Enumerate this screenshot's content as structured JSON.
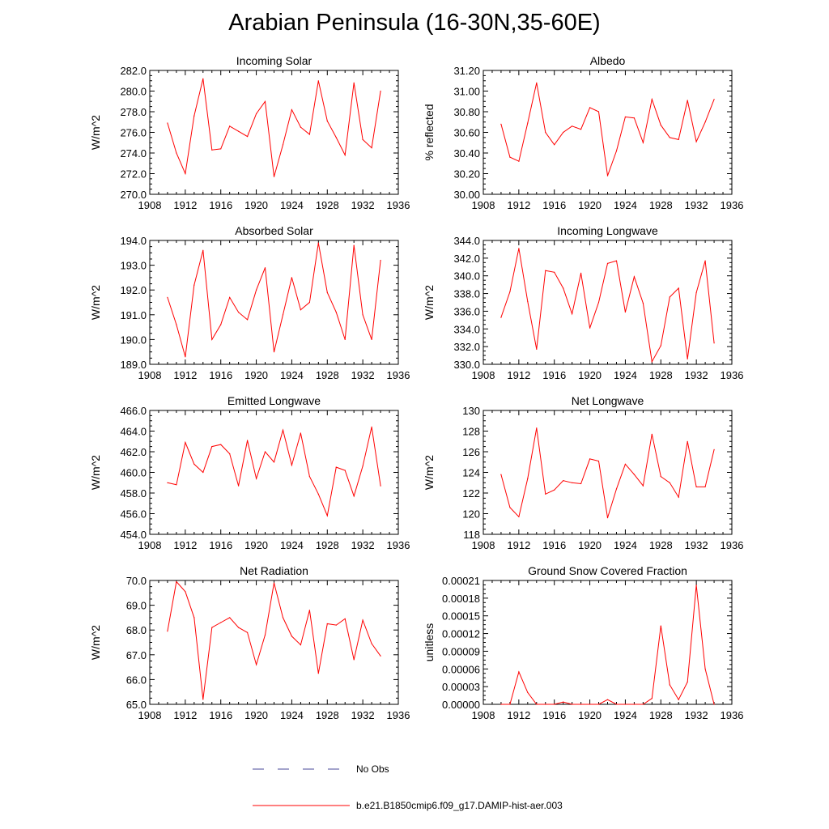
{
  "title": "Arabian Peninsula (16-30N,35-60E)",
  "legend": {
    "no_obs_label": "No Obs",
    "model_label": "b.e21.B1850cmip6.f09_g17.DAMIP-hist-aer.003",
    "no_obs_color": "#4a4a9a",
    "model_color": "#ff0000"
  },
  "chart_data": [
    {
      "type": "line",
      "title": "Incoming Solar",
      "ylabel": "W/m^2",
      "xlim": [
        1908,
        1936
      ],
      "ylim": [
        270,
        282
      ],
      "xticks": [
        "1908",
        "1912",
        "1916",
        "1920",
        "1924",
        "1928",
        "1932",
        "1936"
      ],
      "yticks": [
        "270.0",
        "272.0",
        "274.0",
        "276.0",
        "278.0",
        "280.0",
        "282.0"
      ],
      "x": [
        1910,
        1911,
        1912,
        1913,
        1914,
        1915,
        1916,
        1917,
        1918,
        1919,
        1920,
        1921,
        1922,
        1923,
        1924,
        1925,
        1926,
        1927,
        1928,
        1929,
        1930,
        1931,
        1932,
        1933,
        1934
      ],
      "values": [
        276.9,
        274.0,
        272.0,
        277.6,
        281.2,
        274.3,
        274.4,
        276.6,
        276.1,
        275.6,
        277.8,
        279.0,
        271.7,
        274.8,
        278.2,
        276.5,
        275.8,
        281.0,
        277.1,
        275.5,
        273.8,
        280.8,
        275.3,
        274.5,
        280.0
      ]
    },
    {
      "type": "line",
      "title": "Albedo",
      "ylabel": "% reflected",
      "xlim": [
        1908,
        1936
      ],
      "ylim": [
        30.0,
        31.2
      ],
      "xticks": [
        "1908",
        "1912",
        "1916",
        "1920",
        "1924",
        "1928",
        "1932",
        "1936"
      ],
      "yticks": [
        "30.00",
        "30.20",
        "30.40",
        "30.60",
        "30.80",
        "31.00",
        "31.20"
      ],
      "x": [
        1910,
        1911,
        1912,
        1913,
        1914,
        1915,
        1916,
        1917,
        1918,
        1919,
        1920,
        1921,
        1922,
        1923,
        1924,
        1925,
        1926,
        1927,
        1928,
        1929,
        1930,
        1931,
        1932,
        1933,
        1934
      ],
      "values": [
        30.68,
        30.36,
        30.32,
        30.69,
        31.08,
        30.6,
        30.48,
        30.6,
        30.66,
        30.63,
        30.84,
        30.8,
        30.18,
        30.42,
        30.75,
        30.74,
        30.5,
        30.92,
        30.67,
        30.55,
        30.53,
        30.91,
        30.51,
        30.7,
        30.92
      ]
    },
    {
      "type": "line",
      "title": "Absorbed Solar",
      "ylabel": "W/m^2",
      "xlim": [
        1908,
        1936
      ],
      "ylim": [
        189,
        194
      ],
      "xticks": [
        "1908",
        "1912",
        "1916",
        "1920",
        "1924",
        "1928",
        "1932",
        "1936"
      ],
      "yticks": [
        "189.0",
        "190.0",
        "191.0",
        "192.0",
        "193.0",
        "194.0"
      ],
      "x": [
        1910,
        1911,
        1912,
        1913,
        1914,
        1915,
        1916,
        1917,
        1918,
        1919,
        1920,
        1921,
        1922,
        1923,
        1924,
        1925,
        1926,
        1927,
        1928,
        1929,
        1930,
        1931,
        1932,
        1933,
        1934
      ],
      "values": [
        191.7,
        190.6,
        189.3,
        192.2,
        193.6,
        190.0,
        190.6,
        191.7,
        191.1,
        190.8,
        192.0,
        192.9,
        189.5,
        191.0,
        192.5,
        191.2,
        191.5,
        193.9,
        191.9,
        191.1,
        190.0,
        193.8,
        191.0,
        190.0,
        193.2
      ]
    },
    {
      "type": "line",
      "title": "Incoming Longwave",
      "ylabel": "W/m^2",
      "xlim": [
        1908,
        1936
      ],
      "ylim": [
        330,
        344
      ],
      "xticks": [
        "1908",
        "1912",
        "1916",
        "1920",
        "1924",
        "1928",
        "1932",
        "1936"
      ],
      "yticks": [
        "330.0",
        "332.0",
        "334.0",
        "336.0",
        "338.0",
        "340.0",
        "342.0",
        "344.0"
      ],
      "x": [
        1910,
        1911,
        1912,
        1913,
        1914,
        1915,
        1916,
        1917,
        1918,
        1919,
        1920,
        1921,
        1922,
        1923,
        1924,
        1925,
        1926,
        1927,
        1928,
        1929,
        1930,
        1931,
        1932,
        1933,
        1934
      ],
      "values": [
        335.3,
        338.2,
        343.1,
        337.1,
        331.7,
        340.6,
        340.4,
        338.6,
        335.7,
        340.3,
        334.1,
        337.0,
        341.4,
        341.7,
        335.9,
        339.9,
        336.9,
        330.3,
        332.1,
        337.6,
        338.6,
        330.6,
        338.1,
        341.7,
        332.4
      ]
    },
    {
      "type": "line",
      "title": "Emitted Longwave",
      "ylabel": "W/m^2",
      "xlim": [
        1908,
        1936
      ],
      "ylim": [
        454,
        466
      ],
      "xticks": [
        "1908",
        "1912",
        "1916",
        "1920",
        "1924",
        "1928",
        "1932",
        "1936"
      ],
      "yticks": [
        "454.0",
        "456.0",
        "458.0",
        "460.0",
        "462.0",
        "464.0",
        "466.0"
      ],
      "x": [
        1910,
        1911,
        1912,
        1913,
        1914,
        1915,
        1916,
        1917,
        1918,
        1919,
        1920,
        1921,
        1922,
        1923,
        1924,
        1925,
        1926,
        1927,
        1928,
        1929,
        1930,
        1931,
        1932,
        1933,
        1934
      ],
      "values": [
        459.0,
        458.8,
        462.9,
        460.8,
        460.0,
        462.5,
        462.7,
        461.8,
        458.7,
        463.1,
        459.4,
        462.0,
        461.0,
        464.1,
        460.7,
        463.8,
        459.6,
        457.9,
        455.8,
        460.5,
        460.2,
        457.7,
        460.6,
        464.4,
        458.7
      ]
    },
    {
      "type": "line",
      "title": "Net Longwave",
      "ylabel": "W/m^2",
      "xlim": [
        1908,
        1936
      ],
      "ylim": [
        118,
        130
      ],
      "xticks": [
        "1908",
        "1912",
        "1916",
        "1920",
        "1924",
        "1928",
        "1932",
        "1936"
      ],
      "yticks": [
        "118",
        "120",
        "122",
        "124",
        "126",
        "128",
        "130"
      ],
      "x": [
        1910,
        1911,
        1912,
        1913,
        1914,
        1915,
        1916,
        1917,
        1918,
        1919,
        1920,
        1921,
        1922,
        1923,
        1924,
        1925,
        1926,
        1927,
        1928,
        1929,
        1930,
        1931,
        1932,
        1933,
        1934
      ],
      "values": [
        123.8,
        120.6,
        119.7,
        123.4,
        128.3,
        121.9,
        122.3,
        123.2,
        123.0,
        122.9,
        125.3,
        125.1,
        119.6,
        122.4,
        124.8,
        123.8,
        122.7,
        127.7,
        123.6,
        123.0,
        121.6,
        127.0,
        122.6,
        122.6,
        126.2
      ]
    },
    {
      "type": "line",
      "title": "Net Radiation",
      "ylabel": "W/m^2",
      "xlim": [
        1908,
        1936
      ],
      "ylim": [
        65,
        70
      ],
      "xticks": [
        "1908",
        "1912",
        "1916",
        "1920",
        "1924",
        "1928",
        "1932",
        "1936"
      ],
      "yticks": [
        "65.0",
        "66.0",
        "67.0",
        "68.0",
        "69.0",
        "70.0"
      ],
      "x": [
        1910,
        1911,
        1912,
        1913,
        1914,
        1915,
        1916,
        1917,
        1918,
        1919,
        1920,
        1921,
        1922,
        1923,
        1924,
        1925,
        1926,
        1927,
        1928,
        1929,
        1930,
        1931,
        1932,
        1933,
        1934
      ],
      "values": [
        67.95,
        69.95,
        69.55,
        68.5,
        65.2,
        68.1,
        68.3,
        68.5,
        68.1,
        67.9,
        66.6,
        67.8,
        69.9,
        68.5,
        67.75,
        67.4,
        68.8,
        66.25,
        68.25,
        68.2,
        68.45,
        66.8,
        68.4,
        67.45,
        66.95
      ]
    },
    {
      "type": "line",
      "title": "Ground Snow Covered Fraction",
      "ylabel": "unitless",
      "xlim": [
        1908,
        1936
      ],
      "ylim": [
        0,
        0.00021
      ],
      "xticks": [
        "1908",
        "1912",
        "1916",
        "1920",
        "1924",
        "1928",
        "1932",
        "1936"
      ],
      "yticks": [
        "0.00000",
        "0.00003",
        "0.00006",
        "0.00009",
        "0.00012",
        "0.00015",
        "0.00018",
        "0.00021"
      ],
      "x": [
        1910,
        1911,
        1912,
        1913,
        1914,
        1915,
        1916,
        1917,
        1918,
        1919,
        1920,
        1921,
        1922,
        1923,
        1924,
        1925,
        1926,
        1927,
        1928,
        1929,
        1930,
        1931,
        1932,
        1933,
        1934
      ],
      "values": [
        0,
        0,
        5.5e-05,
        2e-05,
        0,
        0,
        0,
        4e-06,
        0,
        0,
        0,
        0,
        8e-06,
        0,
        0,
        0,
        0,
        1e-05,
        0.000133,
        3.3e-05,
        8e-06,
        3.8e-05,
        0.000202,
        6e-05,
        0
      ]
    }
  ]
}
